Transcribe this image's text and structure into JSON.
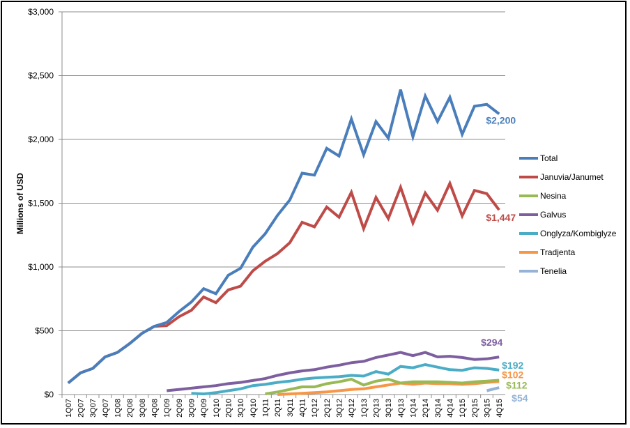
{
  "chart_data": {
    "type": "line",
    "ylabel": "Millions of USD",
    "ylim": [
      0,
      3000
    ],
    "y_ticks": [
      "$0",
      "$500",
      "$1,000",
      "$1,500",
      "$2,000",
      "$2,500",
      "$3,000"
    ],
    "y_tick_values": [
      0,
      500,
      1000,
      1500,
      2000,
      2500,
      3000
    ],
    "grid": "horizontal",
    "legend_position": "right",
    "categories": [
      "1Q07",
      "2Q07",
      "3Q07",
      "4Q07",
      "1Q08",
      "2Q08",
      "3Q08",
      "4Q08",
      "1Q09",
      "2Q09",
      "3Q09",
      "4Q09",
      "1Q10",
      "2Q10",
      "3Q10",
      "4Q10",
      "1Q11",
      "2Q11",
      "3Q11",
      "4Q11",
      "1Q12",
      "2Q12",
      "3Q12",
      "4Q12",
      "1Q13",
      "2Q13",
      "3Q13",
      "4Q13",
      "1Q14",
      "2Q14",
      "3Q14",
      "4Q14",
      "1Q15",
      "2Q15",
      "3Q15",
      "4Q15"
    ],
    "series": [
      {
        "name": "Total",
        "color": "#4a7ebb",
        "end_label": "$2,200",
        "values": [
          90,
          170,
          205,
          295,
          330,
          400,
          480,
          535,
          565,
          650,
          725,
          830,
          790,
          935,
          990,
          1155,
          1260,
          1405,
          1525,
          1735,
          1720,
          1930,
          1870,
          2160,
          1880,
          2140,
          2010,
          2390,
          2020,
          2340,
          2140,
          2330,
          2040,
          2260,
          2275,
          2200
        ]
      },
      {
        "name": "Januvia/Janumet",
        "color": "#be4b48",
        "end_label": "$1,447",
        "values": [
          90,
          170,
          205,
          295,
          330,
          400,
          480,
          535,
          540,
          610,
          660,
          765,
          720,
          820,
          850,
          970,
          1045,
          1105,
          1190,
          1350,
          1315,
          1470,
          1390,
          1585,
          1300,
          1545,
          1380,
          1625,
          1345,
          1580,
          1445,
          1655,
          1400,
          1600,
          1575,
          1447
        ]
      },
      {
        "name": "Nesina",
        "color": "#98b954",
        "end_label": "$112",
        "values": [
          null,
          null,
          null,
          null,
          null,
          null,
          null,
          null,
          null,
          null,
          null,
          null,
          null,
          null,
          null,
          null,
          5,
          20,
          40,
          60,
          60,
          85,
          100,
          120,
          75,
          105,
          120,
          90,
          100,
          100,
          100,
          95,
          90,
          100,
          105,
          112
        ]
      },
      {
        "name": "Galvus",
        "color": "#7d5fa0",
        "end_label": "$294",
        "values": [
          null,
          null,
          null,
          null,
          null,
          null,
          null,
          null,
          30,
          40,
          50,
          60,
          70,
          85,
          95,
          110,
          125,
          150,
          170,
          185,
          195,
          215,
          230,
          250,
          260,
          290,
          310,
          330,
          305,
          330,
          295,
          300,
          290,
          275,
          280,
          294
        ]
      },
      {
        "name": "Onglyza/Kombiglyze",
        "color": "#4bacc6",
        "end_label": "$192",
        "values": [
          null,
          null,
          null,
          null,
          null,
          null,
          null,
          null,
          null,
          null,
          10,
          5,
          15,
          30,
          45,
          70,
          80,
          95,
          105,
          120,
          130,
          135,
          140,
          150,
          145,
          180,
          160,
          220,
          210,
          235,
          215,
          195,
          190,
          210,
          205,
          192
        ]
      },
      {
        "name": "Tradjenta",
        "color": "#f79646",
        "end_label": "$102",
        "values": [
          null,
          null,
          null,
          null,
          null,
          null,
          null,
          null,
          null,
          null,
          null,
          null,
          null,
          null,
          null,
          null,
          null,
          0,
          5,
          10,
          15,
          20,
          30,
          40,
          45,
          60,
          75,
          90,
          80,
          90,
          85,
          85,
          80,
          85,
          95,
          102
        ]
      },
      {
        "name": "Tenelia",
        "color": "#95b3d7",
        "end_label": "$54",
        "values": [
          null,
          null,
          null,
          null,
          null,
          null,
          null,
          null,
          null,
          null,
          null,
          null,
          null,
          null,
          null,
          null,
          null,
          null,
          null,
          null,
          null,
          null,
          null,
          null,
          null,
          null,
          null,
          null,
          null,
          null,
          null,
          null,
          null,
          null,
          30,
          54
        ]
      }
    ]
  }
}
